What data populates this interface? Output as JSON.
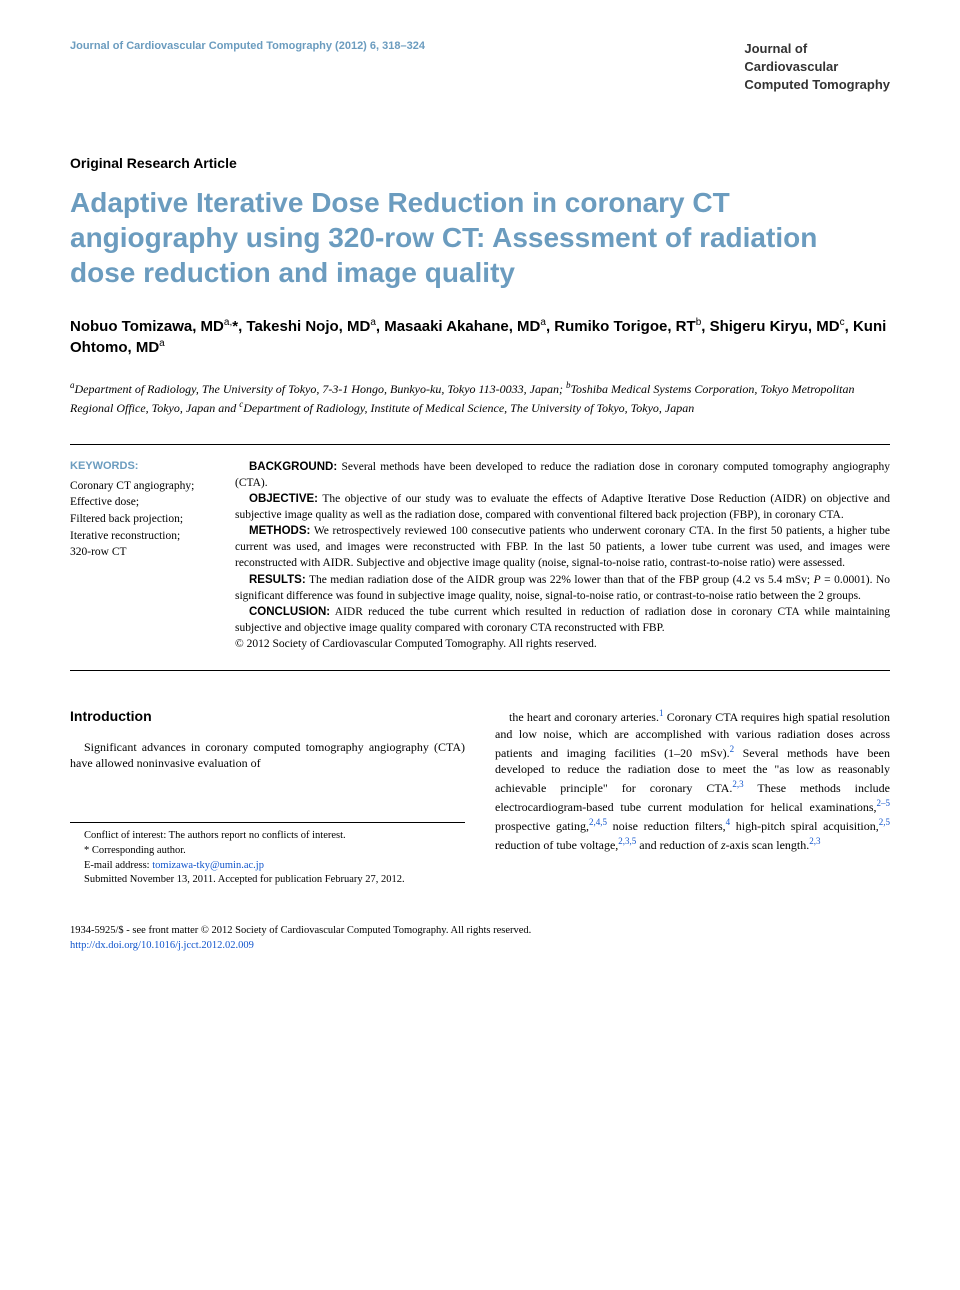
{
  "header": {
    "journal_ref": "Journal of Cardiovascular Computed Tomography (2012) 6, 318–324",
    "journal_box_line1": "Journal of",
    "journal_box_line2": "Cardiovascular",
    "journal_box_line3": "Computed Tomography"
  },
  "article_type": "Original Research Article",
  "title": "Adaptive Iterative Dose Reduction in coronary CT angiography using 320-row CT: Assessment of radiation dose reduction and image quality",
  "authors_html": "Nobuo Tomizawa, MD<sup>a,</sup>*, Takeshi Nojo, MD<sup>a</sup>, Masaaki Akahane, MD<sup>a</sup>, Rumiko Torigoe, RT<sup>b</sup>, Shigeru Kiryu, MD<sup>c</sup>, Kuni Ohtomo, MD<sup>a</sup>",
  "affiliations_html": "<sup>a</sup>Department of Radiology, The University of Tokyo, 7-3-1 Hongo, Bunkyo-ku, Tokyo 113-0033, Japan; <sup>b</sup>Toshiba Medical Systems Corporation, Tokyo Metropolitan Regional Office, Tokyo, Japan and <sup>c</sup>Department of Radiology, Institute of Medical Science, The University of Tokyo, Tokyo, Japan",
  "keywords": {
    "label": "KEYWORDS:",
    "items": "Coronary CT angiography;\nEffective dose;\nFiltered back projection;\nIterative reconstruction;\n320-row CT"
  },
  "abstract": {
    "background_label": "BACKGROUND:",
    "background": " Several methods have been developed to reduce the radiation dose in coronary computed tomography angiography (CTA).",
    "objective_label": "OBJECTIVE:",
    "objective": " The objective of our study was to evaluate the effects of Adaptive Iterative Dose Reduction (AIDR) on objective and subjective image quality as well as the radiation dose, compared with conventional filtered back projection (FBP), in coronary CTA.",
    "methods_label": "METHODS:",
    "methods": " We retrospectively reviewed 100 consecutive patients who underwent coronary CTA. In the first 50 patients, a higher tube current was used, and images were reconstructed with FBP. In the last 50 patients, a lower tube current was used, and images were reconstructed with AIDR. Subjective and objective image quality (noise, signal-to-noise ratio, contrast-to-noise ratio) were assessed.",
    "results_label": "RESULTS:",
    "results_html": " The median radiation dose of the AIDR group was 22% lower than that of the FBP group (4.2 vs 5.4 mSv; <span class=\"italic\">P</span> = 0.0001). No significant difference was found in subjective image quality, noise, signal-to-noise ratio, or contrast-to-noise ratio between the 2 groups.",
    "conclusion_label": "CONCLUSION:",
    "conclusion": " AIDR reduced the tube current which resulted in reduction of radiation dose in coronary CTA while maintaining subjective and objective image quality compared with coronary CTA reconstructed with FBP.",
    "copyright": "© 2012 Society of Cardiovascular Computed Tomography. All rights reserved."
  },
  "body": {
    "intro_heading": "Introduction",
    "intro_para": "Significant advances in coronary computed tomography angiography (CTA) have allowed noninvasive evaluation of",
    "col2_html": "the heart and coronary arteries.<span class=\"ref-sup\">1</span> Coronary CTA requires high spatial resolution and low noise, which are accomplished with various radiation doses across patients and imaging facilities (1–20 mSv).<span class=\"ref-sup\">2</span> Several methods have been developed to reduce the radiation dose to meet the \"as low as reasonably achievable principle\" for coronary CTA.<span class=\"ref-sup\">2,3</span> These methods include electrocardiogram-based tube current modulation for helical examinations,<span class=\"ref-sup\">2–5</span> prospective gating,<span class=\"ref-sup\">2,4,5</span> noise reduction filters,<span class=\"ref-sup\">4</span> high-pitch spiral acquisition,<span class=\"ref-sup\">2,5</span> reduction of tube voltage,<span class=\"ref-sup\">2,3,5</span> and reduction of <span class=\"italic\">z</span>-axis scan length.<span class=\"ref-sup\">2,3</span>"
  },
  "footnotes": {
    "conflict": "Conflict of interest: The authors report no conflicts of interest.",
    "corresponding": "* Corresponding author.",
    "email_label": "E-mail address: ",
    "email": "tomizawa-tky@umin.ac.jp",
    "submitted": "Submitted November 13, 2011. Accepted for publication February 27, 2012."
  },
  "footer": {
    "line1": "1934-5925/$ - see front matter © 2012 Society of Cardiovascular Computed Tomography. All rights reserved.",
    "doi": "http://dx.doi.org/10.1016/j.jcct.2012.02.009"
  },
  "colors": {
    "accent": "#6b9cbf",
    "link": "#1155cc",
    "text": "#000000",
    "background": "#ffffff"
  }
}
